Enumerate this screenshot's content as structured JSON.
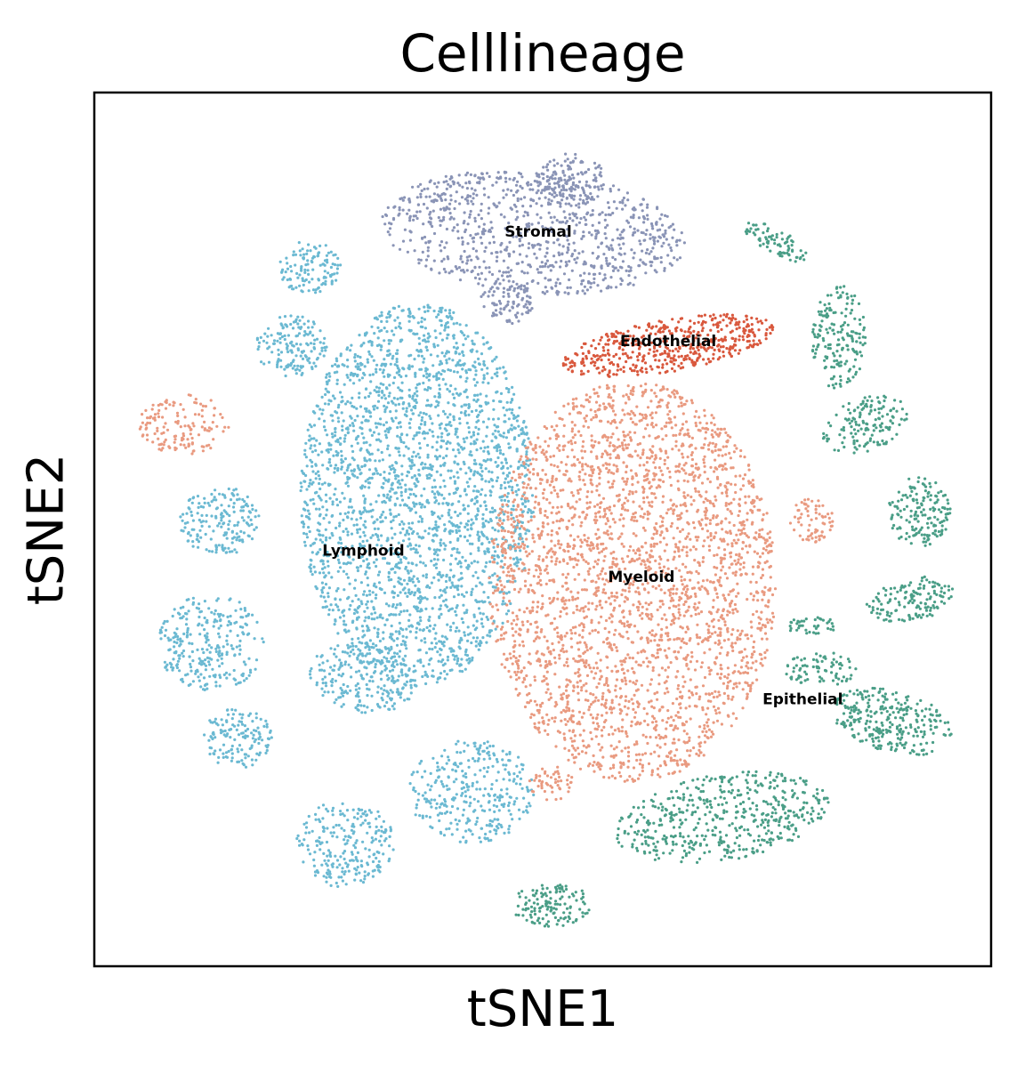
{
  "chart_data": {
    "type": "scatter",
    "title": "Celllineage",
    "xlabel": "tSNE1",
    "ylabel": "tSNE2",
    "x_ticks": [],
    "y_ticks": [],
    "xlim": [
      -50,
      50
    ],
    "ylim": [
      -50,
      50
    ],
    "grid": false,
    "legend": "on data",
    "series": [
      {
        "name": "Stromal",
        "color": "#8a94b6",
        "label_pos": [
          -0.5,
          33.5
        ],
        "clusters": [
          {
            "cx": -1,
            "cy": 34,
            "rx": 17,
            "ry": 7,
            "rot": -5,
            "n": 900
          },
          {
            "cx": 3,
            "cy": 40,
            "rx": 4,
            "ry": 3,
            "rot": 0,
            "n": 150
          },
          {
            "cx": -4,
            "cy": 26,
            "rx": 3,
            "ry": 2.5,
            "rot": 0,
            "n": 90
          }
        ]
      },
      {
        "name": "Endothelial",
        "color": "#d9583d",
        "label_pos": [
          14,
          21
        ],
        "clusters": [
          {
            "cx": 14,
            "cy": 21,
            "rx": 12,
            "ry": 3,
            "rot": 10,
            "n": 500
          }
        ]
      },
      {
        "name": "Lymphoid",
        "color": "#6bb9d2",
        "label_pos": [
          -20,
          -3
        ],
        "clusters": [
          {
            "cx": -14,
            "cy": 4,
            "rx": 13,
            "ry": 22,
            "rot": 0,
            "n": 2600
          },
          {
            "cx": -28,
            "cy": 21,
            "rx": 4,
            "ry": 3.5,
            "rot": 0,
            "n": 160
          },
          {
            "cx": -26,
            "cy": 30,
            "rx": 3.5,
            "ry": 3,
            "rot": 0,
            "n": 120
          },
          {
            "cx": -36,
            "cy": 1,
            "rx": 4.5,
            "ry": 4,
            "rot": 0,
            "n": 180
          },
          {
            "cx": -37,
            "cy": -13,
            "rx": 6,
            "ry": 5.5,
            "rot": 0,
            "n": 280
          },
          {
            "cx": -34,
            "cy": -24,
            "rx": 4,
            "ry": 3.5,
            "rot": 0,
            "n": 140
          },
          {
            "cx": -20,
            "cy": -17,
            "rx": 6,
            "ry": 4,
            "rot": -10,
            "n": 220
          },
          {
            "cx": -8,
            "cy": -30,
            "rx": 7,
            "ry": 6,
            "rot": 0,
            "n": 320
          },
          {
            "cx": -22,
            "cy": -36,
            "rx": 5.5,
            "ry": 5,
            "rot": 0,
            "n": 240
          }
        ]
      },
      {
        "name": "Myeloid",
        "color": "#e99a80",
        "label_pos": [
          11,
          -6
        ],
        "clusters": [
          {
            "cx": 10,
            "cy": -6,
            "rx": 16,
            "ry": 23,
            "rot": 0,
            "n": 3000
          },
          {
            "cx": -40,
            "cy": 12,
            "rx": 5,
            "ry": 3.5,
            "rot": 0,
            "n": 140
          },
          {
            "cx": 30,
            "cy": 1,
            "rx": 2.5,
            "ry": 2.5,
            "rot": 0,
            "n": 70
          },
          {
            "cx": 1,
            "cy": -29,
            "rx": 2.5,
            "ry": 2,
            "rot": 0,
            "n": 50
          }
        ]
      },
      {
        "name": "Epithelial",
        "color": "#4a9e87",
        "label_pos": [
          29,
          -20
        ],
        "clusters": [
          {
            "cx": 26,
            "cy": 33,
            "rx": 4,
            "ry": 1.5,
            "rot": -30,
            "n": 80
          },
          {
            "cx": 33,
            "cy": 22,
            "rx": 3,
            "ry": 6,
            "rot": 0,
            "n": 180
          },
          {
            "cx": 36,
            "cy": 12,
            "rx": 5,
            "ry": 3,
            "rot": 20,
            "n": 150
          },
          {
            "cx": 42,
            "cy": 2,
            "rx": 3.5,
            "ry": 4,
            "rot": 0,
            "n": 160
          },
          {
            "cx": 41,
            "cy": -8,
            "rx": 5,
            "ry": 2.5,
            "rot": 10,
            "n": 140
          },
          {
            "cx": 30,
            "cy": -11,
            "rx": 3,
            "ry": 1,
            "rot": 0,
            "n": 40
          },
          {
            "cx": 31,
            "cy": -16,
            "rx": 4,
            "ry": 2,
            "rot": 0,
            "n": 80
          },
          {
            "cx": 39,
            "cy": -22,
            "rx": 7,
            "ry": 3.5,
            "rot": -15,
            "n": 280
          },
          {
            "cx": 20,
            "cy": -33,
            "rx": 12,
            "ry": 5,
            "rot": 10,
            "n": 500
          },
          {
            "cx": 1,
            "cy": -43,
            "rx": 4.5,
            "ry": 2.5,
            "rot": 0,
            "n": 130
          }
        ]
      }
    ]
  }
}
